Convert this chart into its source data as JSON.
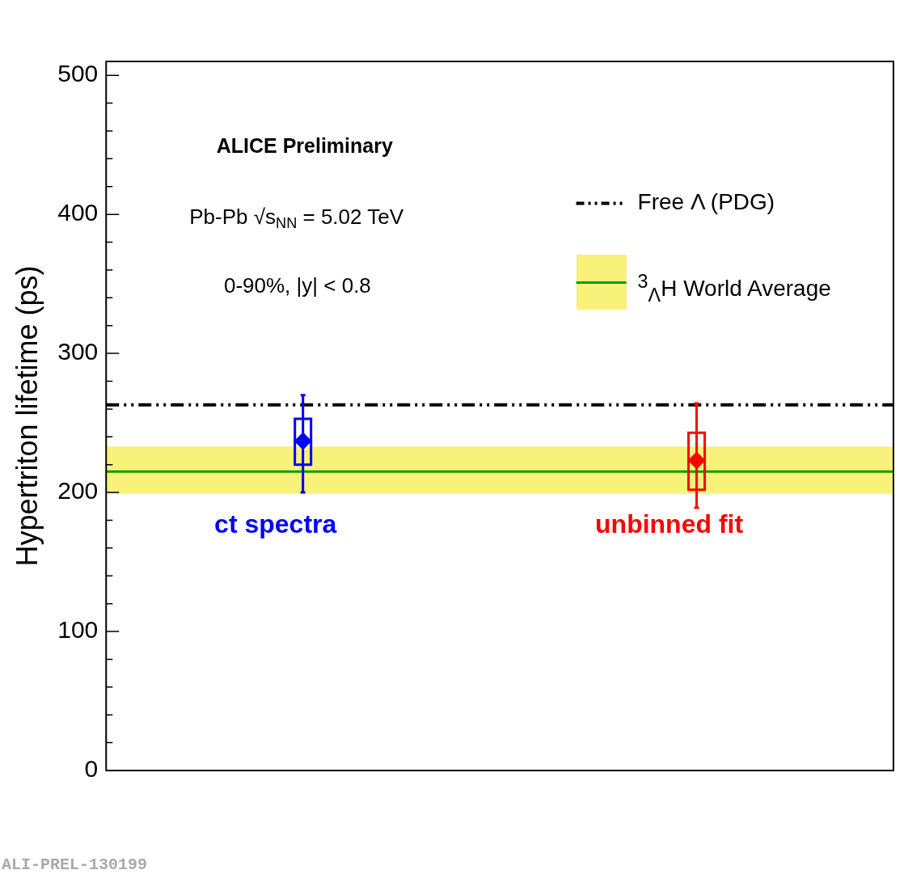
{
  "chart_data": {
    "type": "box",
    "ylabel": "Hypertriton lifetime (ps)",
    "categories": [
      null,
      null
    ],
    "ylim": [
      0,
      510
    ],
    "yticks": [
      0,
      {
        "value": 20,
        "label": null
      },
      {
        "value": 40,
        "label": null
      },
      {
        "value": 60,
        "label": null
      },
      {
        "value": 80,
        "label": null
      },
      100,
      {
        "value": 120,
        "label": null
      },
      {
        "value": 140,
        "label": null
      },
      {
        "value": 160,
        "label": null
      },
      {
        "value": 180,
        "label": null
      },
      200,
      {
        "value": 220,
        "label": null
      },
      {
        "value": 240,
        "label": null
      },
      {
        "value": 260,
        "label": null
      },
      {
        "value": 280,
        "label": null
      },
      300,
      {
        "value": 320,
        "label": null
      },
      {
        "value": 340,
        "label": null
      },
      {
        "value": 360,
        "label": null
      },
      {
        "value": 380,
        "label": null
      },
      400,
      {
        "value": 420,
        "label": null
      },
      {
        "value": 440,
        "label": null
      },
      {
        "value": 460,
        "label": null
      },
      {
        "value": 480,
        "label": null
      },
      500
    ],
    "tick_labels": "y",
    "grid": false,
    "marker": "diamond",
    "legend": "top right",
    "series": [
      {
        "name": "ct spectra",
        "color": "#0000ff",
        "boxes": [
          {
            "low": 200,
            "q1": 220,
            "median": 237,
            "q3": 253,
            "high": 270
          },
          null
        ]
      },
      {
        "name": "unbinned fit",
        "color": "#ff0000",
        "boxes": [
          null,
          {
            "low": 189,
            "q1": 202,
            "median": 223,
            "q3": 243,
            "high": 264
          }
        ]
      }
    ],
    "ref_lines": [
      {
        "axis": "y",
        "value": 263,
        "label": "Free Λ (PDG)",
        "color": "#000000",
        "line_style": "dashed"
      },
      {
        "axis": "y",
        "value": 215,
        "label": "$^{3}$$_{Λ}$H World Average",
        "color": "#00a000",
        "line_style": "solid"
      }
    ],
    "bands": [
      {
        "axis": "y",
        "from": 199,
        "to": 233,
        "color": "#f8f27a"
      }
    ],
    "annotations": [
      "ALICE Preliminary",
      "Pb-Pb √s$_{NN}$ = 5.02 TeV",
      "0-90%, |y| < 0.8",
      "ALI-PREL-130199"
    ]
  }
}
